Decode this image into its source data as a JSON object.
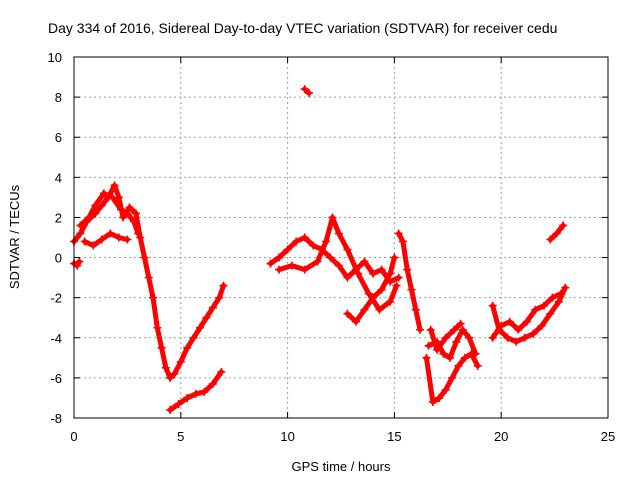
{
  "chart_data": {
    "type": "scatter",
    "title": "Day 334 of 2016, Sidereal Day-to-day VTEC variation (SDTVAR) for receiver cedu",
    "xlabel": "GPS time / hours",
    "ylabel": "SDTVAR / TECUs",
    "xlim": [
      0,
      25
    ],
    "ylim": [
      -8,
      10
    ],
    "xticks": [
      0,
      5,
      10,
      15,
      20,
      25
    ],
    "yticks": [
      -8,
      -6,
      -4,
      -2,
      0,
      2,
      4,
      6,
      8,
      10
    ],
    "xtick_labels": [
      "0",
      "5",
      "10",
      "15",
      "20",
      "25"
    ],
    "ytick_labels": [
      "-8",
      "-6",
      "-4",
      "-2",
      "0",
      "2",
      "4",
      "6",
      "8",
      "10"
    ],
    "grid": true,
    "marker": "+",
    "series": [
      {
        "name": "SDTVAR",
        "color": "#ff0000",
        "traces": [
          [
            [
              0.0,
              -0.3
            ],
            [
              0.15,
              -0.4
            ],
            [
              0.25,
              -0.2
            ]
          ],
          [
            [
              0.0,
              0.8
            ],
            [
              0.3,
              1.2
            ],
            [
              0.6,
              1.8
            ],
            [
              1.0,
              2.2
            ],
            [
              1.3,
              2.6
            ],
            [
              1.6,
              3.0
            ],
            [
              1.9,
              3.6
            ],
            [
              2.1,
              3.0
            ],
            [
              2.3,
              2.0
            ],
            [
              2.6,
              2.5
            ],
            [
              2.9,
              2.2
            ],
            [
              3.1,
              1.0
            ],
            [
              3.3,
              0.0
            ],
            [
              3.5,
              -1.0
            ],
            [
              3.7,
              -2.0
            ],
            [
              3.9,
              -3.5
            ],
            [
              4.1,
              -4.5
            ],
            [
              4.3,
              -5.5
            ],
            [
              4.5,
              -6.0
            ],
            [
              4.7,
              -5.8
            ],
            [
              5.0,
              -5.2
            ],
            [
              5.3,
              -4.5
            ],
            [
              5.6,
              -4.0
            ],
            [
              5.9,
              -3.5
            ],
            [
              6.2,
              -3.0
            ],
            [
              6.5,
              -2.5
            ],
            [
              6.8,
              -2.0
            ],
            [
              7.0,
              -1.4
            ]
          ],
          [
            [
              0.3,
              1.6
            ],
            [
              0.7,
              2.0
            ],
            [
              1.0,
              2.6
            ],
            [
              1.4,
              3.2
            ],
            [
              1.8,
              3.0
            ],
            [
              2.2,
              2.4
            ],
            [
              2.5,
              2.2
            ],
            [
              2.8,
              1.8
            ],
            [
              3.0,
              1.2
            ]
          ],
          [
            [
              0.5,
              0.8
            ],
            [
              0.9,
              0.6
            ],
            [
              1.3,
              0.9
            ],
            [
              1.7,
              1.2
            ],
            [
              2.1,
              1.0
            ],
            [
              2.5,
              0.9
            ]
          ],
          [
            [
              4.5,
              -7.6
            ],
            [
              4.9,
              -7.3
            ],
            [
              5.3,
              -7.0
            ],
            [
              5.7,
              -6.8
            ],
            [
              6.1,
              -6.7
            ],
            [
              6.5,
              -6.3
            ],
            [
              6.9,
              -5.7
            ]
          ],
          [
            [
              9.2,
              -0.3
            ],
            [
              9.6,
              0.0
            ],
            [
              10.0,
              0.4
            ],
            [
              10.4,
              0.8
            ],
            [
              10.8,
              1.0
            ],
            [
              11.2,
              0.6
            ],
            [
              11.6,
              0.4
            ],
            [
              12.0,
              0.0
            ],
            [
              12.4,
              -0.4
            ],
            [
              12.8,
              -1.0
            ],
            [
              13.2,
              -0.6
            ],
            [
              13.6,
              -0.2
            ],
            [
              14.0,
              -0.8
            ],
            [
              14.4,
              -0.6
            ],
            [
              14.8,
              -1.2
            ],
            [
              15.2,
              -1.0
            ]
          ],
          [
            [
              9.6,
              -0.6
            ],
            [
              10.2,
              -0.4
            ],
            [
              10.8,
              -0.6
            ],
            [
              11.4,
              -0.2
            ],
            [
              11.8,
              0.8
            ],
            [
              12.1,
              2.0
            ],
            [
              12.4,
              1.2
            ],
            [
              12.8,
              0.4
            ],
            [
              13.3,
              -0.8
            ],
            [
              13.8,
              -1.8
            ],
            [
              14.3,
              -2.6
            ],
            [
              14.8,
              -2.2
            ],
            [
              15.1,
              -1.4
            ]
          ],
          [
            [
              12.8,
              -2.8
            ],
            [
              13.2,
              -3.2
            ],
            [
              13.6,
              -2.6
            ],
            [
              14.0,
              -2.0
            ],
            [
              14.4,
              -1.6
            ],
            [
              14.8,
              -0.8
            ],
            [
              15.0,
              0.0
            ]
          ],
          [
            [
              10.8,
              8.4
            ],
            [
              11.0,
              8.2
            ]
          ],
          [
            [
              15.2,
              1.2
            ],
            [
              15.4,
              0.8
            ],
            [
              15.6,
              -0.6
            ],
            [
              15.8,
              -1.6
            ],
            [
              16.0,
              -2.6
            ],
            [
              16.2,
              -3.6
            ]
          ],
          [
            [
              16.5,
              -5.0
            ],
            [
              16.8,
              -7.2
            ],
            [
              17.1,
              -7.0
            ],
            [
              17.4,
              -6.6
            ],
            [
              17.7,
              -6.0
            ],
            [
              18.0,
              -5.4
            ],
            [
              18.3,
              -5.0
            ],
            [
              18.6,
              -4.8
            ],
            [
              18.9,
              -5.4
            ]
          ],
          [
            [
              16.6,
              -4.4
            ],
            [
              17.0,
              -4.2
            ],
            [
              17.3,
              -4.8
            ],
            [
              17.6,
              -5.0
            ],
            [
              17.9,
              -4.2
            ],
            [
              18.2,
              -3.6
            ],
            [
              18.5,
              -4.0
            ],
            [
              18.8,
              -4.8
            ]
          ],
          [
            [
              16.7,
              -3.6
            ],
            [
              17.0,
              -4.6
            ],
            [
              17.4,
              -4.0
            ],
            [
              17.8,
              -3.6
            ],
            [
              18.1,
              -3.3
            ]
          ],
          [
            [
              19.6,
              -2.4
            ],
            [
              19.9,
              -3.6
            ],
            [
              20.3,
              -4.0
            ],
            [
              20.7,
              -4.2
            ],
            [
              21.1,
              -4.0
            ],
            [
              21.5,
              -3.8
            ],
            [
              21.9,
              -3.4
            ],
            [
              22.3,
              -2.8
            ],
            [
              22.7,
              -2.2
            ],
            [
              23.0,
              -1.5
            ]
          ],
          [
            [
              19.6,
              -4.0
            ],
            [
              20.0,
              -3.4
            ],
            [
              20.4,
              -3.2
            ],
            [
              20.8,
              -3.6
            ],
            [
              21.2,
              -3.2
            ],
            [
              21.6,
              -2.6
            ],
            [
              22.0,
              -2.4
            ],
            [
              22.4,
              -2.0
            ],
            [
              22.8,
              -1.8
            ]
          ],
          [
            [
              22.3,
              0.9
            ],
            [
              22.6,
              1.2
            ],
            [
              22.9,
              1.6
            ]
          ]
        ]
      }
    ]
  }
}
